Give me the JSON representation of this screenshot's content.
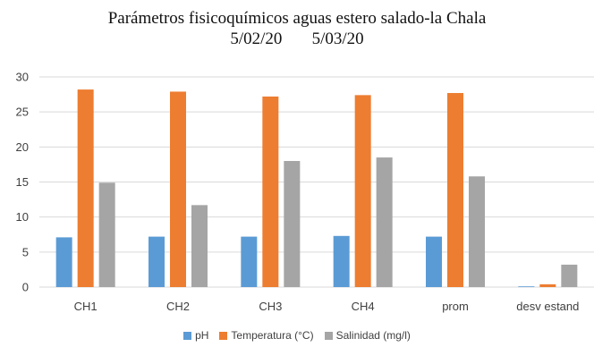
{
  "chart_data": {
    "type": "bar",
    "title": "Parámetros fisicoquímicos aguas estero salado-la Chala",
    "subtitle": "5/02/20       5/03/20",
    "xlabel": "",
    "ylabel": "",
    "categories": [
      "CH1",
      "CH2",
      "CH3",
      "CH4",
      "prom",
      "desv estand"
    ],
    "ylim": [
      0,
      30
    ],
    "yticks": [
      0,
      5,
      10,
      15,
      20,
      25,
      30
    ],
    "grid": true,
    "legend_position": "bottom",
    "series": [
      {
        "name": "pH",
        "color": "#5B9BD5",
        "values": [
          7.1,
          7.2,
          7.2,
          7.3,
          7.2,
          0.1
        ]
      },
      {
        "name": "Temperatura (°C)",
        "color": "#ED7D31",
        "values": [
          28.2,
          27.9,
          27.2,
          27.4,
          27.7,
          0.4
        ]
      },
      {
        "name": "Salinidad (mg/l)",
        "color": "#A5A5A5",
        "values": [
          14.9,
          11.7,
          18.0,
          18.5,
          15.8,
          3.2
        ]
      }
    ]
  }
}
